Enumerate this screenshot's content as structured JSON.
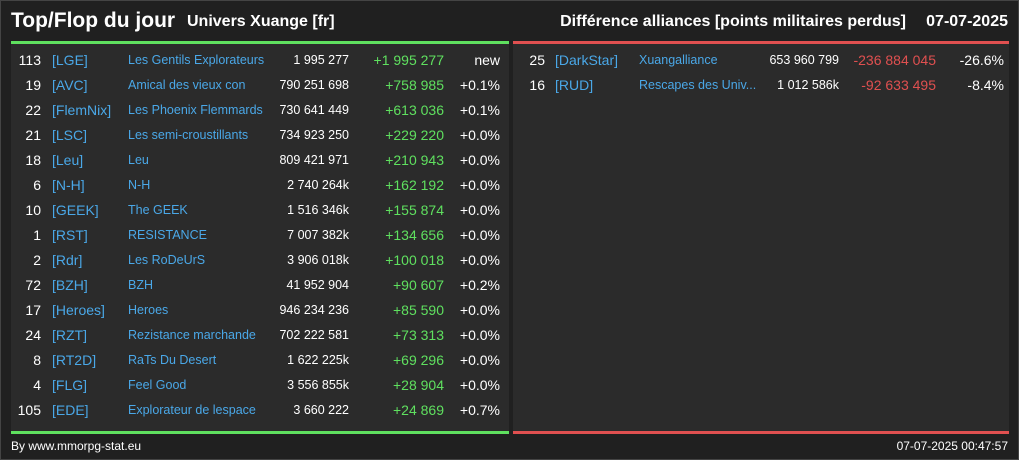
{
  "header": {
    "title": "Top/Flop du jour",
    "subtitle": "Univers Xuange [fr]",
    "right_title": "Différence alliances [points militaires perdus]",
    "date": "07-07-2025"
  },
  "colors": {
    "positive": "#5fe05f",
    "negative": "#e05050",
    "link": "#4aa8e8"
  },
  "top": [
    {
      "rank": "113",
      "tag": "[LGE]",
      "name": "Les Gentils Explorateurs",
      "points": "1 995 277",
      "diff": "+1 995 277",
      "pct": "new"
    },
    {
      "rank": "19",
      "tag": "[AVC]",
      "name": "Amical des vieux con",
      "points": "790 251 698",
      "diff": "+758 985",
      "pct": "+0.1%"
    },
    {
      "rank": "22",
      "tag": "[FlemNix]",
      "name": "Les Phoenix Flemmards",
      "points": "730 641 449",
      "diff": "+613 036",
      "pct": "+0.1%"
    },
    {
      "rank": "21",
      "tag": "[LSC]",
      "name": "Les semi-croustillants",
      "points": "734 923 250",
      "diff": "+229 220",
      "pct": "+0.0%"
    },
    {
      "rank": "18",
      "tag": "[Leu]",
      "name": "Leu",
      "points": "809 421 971",
      "diff": "+210 943",
      "pct": "+0.0%"
    },
    {
      "rank": "6",
      "tag": "[N-H]",
      "name": "N-H",
      "points": "2 740 264k",
      "diff": "+162 192",
      "pct": "+0.0%"
    },
    {
      "rank": "10",
      "tag": "[GEEK]",
      "name": "The GEEK",
      "points": "1 516 346k",
      "diff": "+155 874",
      "pct": "+0.0%"
    },
    {
      "rank": "1",
      "tag": "[RST]",
      "name": "RESISTANCE",
      "points": "7 007 382k",
      "diff": "+134 656",
      "pct": "+0.0%"
    },
    {
      "rank": "2",
      "tag": "[Rdr]",
      "name": "Les RoDeUrS",
      "points": "3 906 018k",
      "diff": "+100 018",
      "pct": "+0.0%"
    },
    {
      "rank": "72",
      "tag": "[BZH]",
      "name": "BZH",
      "points": "41 952 904",
      "diff": "+90 607",
      "pct": "+0.2%"
    },
    {
      "rank": "17",
      "tag": "[Heroes]",
      "name": "Heroes",
      "points": "946 234 236",
      "diff": "+85 590",
      "pct": "+0.0%"
    },
    {
      "rank": "24",
      "tag": "[RZT]",
      "name": "Rezistance marchande",
      "points": "702 222 581",
      "diff": "+73 313",
      "pct": "+0.0%"
    },
    {
      "rank": "8",
      "tag": "[RT2D]",
      "name": "RaTs Du Desert",
      "points": "1 622 225k",
      "diff": "+69 296",
      "pct": "+0.0%"
    },
    {
      "rank": "4",
      "tag": "[FLG]",
      "name": "Feel Good",
      "points": "3 556 855k",
      "diff": "+28 904",
      "pct": "+0.0%"
    },
    {
      "rank": "105",
      "tag": "[EDE]",
      "name": "Explorateur de lespace",
      "points": "3 660 222",
      "diff": "+24 869",
      "pct": "+0.7%"
    }
  ],
  "flop": [
    {
      "rank": "25",
      "tag": "[DarkStar]",
      "name": "Xuangalliance",
      "points": "653 960 799",
      "diff": "-236 884 045",
      "pct": "-26.6%"
    },
    {
      "rank": "16",
      "tag": "[RUD]",
      "name": "Rescapes des Univ...",
      "points": "1 012 586k",
      "diff": "-92 633 495",
      "pct": "-8.4%"
    }
  ],
  "footer": {
    "source": "By www.mmorpg-stat.eu",
    "timestamp": "07-07-2025 00:47:57"
  }
}
